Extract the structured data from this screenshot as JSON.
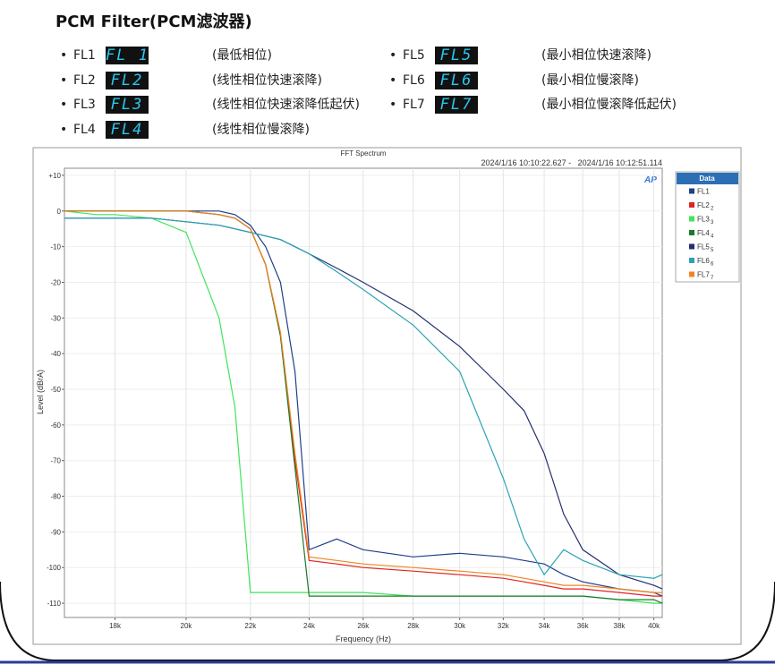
{
  "header": {
    "title": "PCM Filter(PCM滤波器)"
  },
  "items": [
    {
      "label": "FL1",
      "display": "FL 1",
      "desc": "(最低相位)"
    },
    {
      "label": "FL2",
      "display": "FL2",
      "desc": "(线性相位快速滚降)"
    },
    {
      "label": "FL3",
      "display": "FL3",
      "desc": "(线性相位快速滚降低起伏)"
    },
    {
      "label": "FL4",
      "display": "FL4",
      "desc": "(线性相位慢滚降)"
    },
    {
      "label": "FL5",
      "display": "FL5",
      "desc": "(最小相位快速滚降)"
    },
    {
      "label": "FL6",
      "display": "FL6",
      "desc": "(最小相位慢滚降)"
    },
    {
      "label": "FL7",
      "display": "FL7",
      "desc": "(最小相位慢滚降低起伏)"
    }
  ],
  "chart_data": {
    "type": "line",
    "title": "FFT Spectrum",
    "subtitle": "2024/1/16 10:10:22.627 -   2024/1/16 10:12:51.114",
    "logo": "AP",
    "x_label": "Frequency (Hz)",
    "y_label": "Level (dBrA)",
    "legend_title": "Data",
    "legend": "upper right",
    "x_log": true,
    "grid": true,
    "xlim": [
      16700,
      40500
    ],
    "ylim": [
      -114,
      12
    ],
    "xticks": [
      {
        "value": 18000,
        "label": "18k"
      },
      {
        "value": 20000,
        "label": "20k"
      },
      {
        "value": 22000,
        "label": "22k"
      },
      {
        "value": 24000,
        "label": "24k"
      },
      {
        "value": 26000,
        "label": "26k"
      },
      {
        "value": 28000,
        "label": "28k"
      },
      {
        "value": 30000,
        "label": "30k"
      },
      {
        "value": 32000,
        "label": "32k"
      },
      {
        "value": 34000,
        "label": "34k"
      },
      {
        "value": 36000,
        "label": "36k"
      },
      {
        "value": 38000,
        "label": "38k"
      },
      {
        "value": 40000,
        "label": "40k"
      }
    ],
    "yticks": [
      {
        "value": 10,
        "label": "+10"
      },
      0,
      -10,
      -20,
      -30,
      -40,
      -50,
      -60,
      -70,
      -80,
      -90,
      -100,
      -110
    ],
    "x": [
      16700,
      17500,
      18000,
      19000,
      20000,
      21000,
      21500,
      22000,
      22500,
      23000,
      23500,
      24000,
      25000,
      26000,
      28000,
      30000,
      32000,
      33000,
      34000,
      35000,
      36000,
      38000,
      40000,
      40500
    ],
    "series": [
      {
        "name": "FL1",
        "color": "#1f3f8a",
        "values": [
          0,
          0,
          0,
          0,
          0,
          0,
          -1,
          -4,
          -10,
          -20,
          -45,
          -95,
          -92,
          -95,
          -97,
          -96,
          -97,
          -98,
          -99,
          -102,
          -104,
          -106,
          -107,
          -108
        ]
      },
      {
        "name": "FL2",
        "legend_index": "2",
        "color": "#e02424",
        "values": [
          0,
          0,
          0,
          0,
          0,
          -1,
          -2,
          -5,
          -15,
          -35,
          -70,
          -98,
          -99,
          -100,
          -101,
          -102,
          -103,
          -104,
          -105,
          -106,
          -106,
          -107,
          -108,
          -108
        ]
      },
      {
        "name": "FL3",
        "legend_index": "3",
        "color": "#3ee65a",
        "values": [
          0,
          -1,
          -1,
          -2,
          -6,
          -30,
          -55,
          -107,
          -107,
          -107,
          -107,
          -107,
          -107,
          -107,
          -108,
          -108,
          -108,
          -108,
          -108,
          -108,
          -108,
          -109,
          -110,
          -110
        ]
      },
      {
        "name": "FL4",
        "legend_index": "4",
        "color": "#1a7a2c",
        "values": [
          0,
          0,
          0,
          0,
          0,
          -1,
          -2,
          -5,
          -15,
          -35,
          -72,
          -108,
          -108,
          -108,
          -108,
          -108,
          -108,
          -108,
          -108,
          -108,
          -108,
          -109,
          -109,
          -110
        ]
      },
      {
        "name": "FL5",
        "legend_index": "5",
        "color": "#24306e",
        "values": [
          -2,
          -2,
          -2,
          -2,
          -3,
          -4,
          -5,
          -6,
          -7,
          -8,
          -10,
          -12,
          -16,
          -20,
          -28,
          -38,
          -50,
          -56,
          -68,
          -85,
          -95,
          -102,
          -105,
          -106
        ]
      },
      {
        "name": "FL6",
        "legend_index": "6",
        "color": "#2ba3b3",
        "values": [
          -2,
          -2,
          -2,
          -2,
          -3,
          -4,
          -5,
          -6,
          -7,
          -8,
          -10,
          -12,
          -17,
          -22,
          -32,
          -45,
          -75,
          -92,
          -102,
          -95,
          -98,
          -102,
          -103,
          -102
        ]
      },
      {
        "name": "FL7",
        "legend_index": "7",
        "color": "#f2841f",
        "values": [
          0,
          0,
          0,
          0,
          0,
          -1,
          -2,
          -5,
          -15,
          -34,
          -68,
          -97,
          -98,
          -99,
          -100,
          -101,
          -102,
          -103,
          -104,
          -105,
          -105,
          -106,
          -107,
          -107
        ]
      }
    ]
  }
}
